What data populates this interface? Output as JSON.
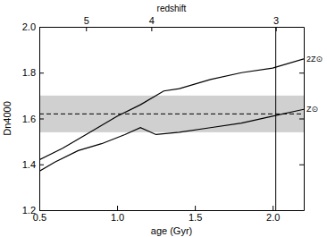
{
  "chart_data": {
    "type": "line",
    "x_label": "age (Gyr)",
    "y_label": "Dn4000",
    "x2_label": "redshift",
    "xlim": [
      0.5,
      2.2
    ],
    "xticks": [
      {
        "value": 0.5,
        "label": "0.5"
      },
      {
        "value": 1,
        "label": "1.0"
      },
      {
        "value": 1.5,
        "label": "1.5"
      },
      {
        "value": 2,
        "label": "2.0"
      }
    ],
    "x2ticks": [
      {
        "value": 0.8,
        "label": "5"
      },
      {
        "value": 1.22,
        "label": "4"
      },
      {
        "value": 2.02,
        "label": "3"
      }
    ],
    "ylim": [
      1.2,
      2.0
    ],
    "yticks": [
      {
        "value": 1.2,
        "label": "1.2"
      },
      {
        "value": 1.4,
        "label": "1.4"
      },
      {
        "value": 1.6,
        "label": "1.6"
      },
      {
        "value": 1.8,
        "label": "1.8"
      },
      {
        "value": 2,
        "label": "2.0"
      }
    ],
    "band": [
      1.54,
      1.7
    ],
    "hline": 1.62,
    "vline": 2.02,
    "color": "#000000",
    "series": [
      {
        "name": "2Z⊙",
        "color": "#000000",
        "x": [
          0.5,
          0.65,
          0.8,
          0.9,
          1.0,
          1.15,
          1.3,
          1.4,
          1.6,
          1.8,
          2.0,
          2.2
        ],
        "values": [
          1.42,
          1.47,
          1.53,
          1.57,
          1.61,
          1.66,
          1.72,
          1.73,
          1.77,
          1.8,
          1.82,
          1.86
        ]
      },
      {
        "name": "Z⊙",
        "color": "#000000",
        "x": [
          0.5,
          0.6,
          0.75,
          0.9,
          1.05,
          1.15,
          1.25,
          1.4,
          1.6,
          1.8,
          2.0,
          2.2
        ],
        "values": [
          1.37,
          1.41,
          1.46,
          1.49,
          1.53,
          1.56,
          1.53,
          1.54,
          1.56,
          1.58,
          1.61,
          1.64
        ]
      }
    ]
  }
}
